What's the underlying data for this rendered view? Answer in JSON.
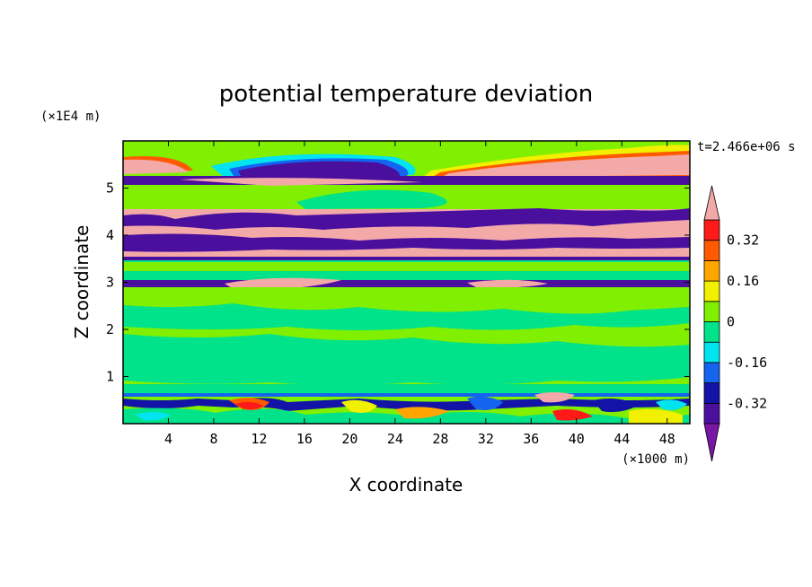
{
  "chart_data": {
    "type": "heatmap",
    "title": "potential temperature deviation",
    "xlabel": "X coordinate",
    "ylabel": "Z coordinate",
    "x_scale_label": "(×1000 m)",
    "y_scale_label": "(×1E4 m)",
    "time_label": "t=2.466e+06 s",
    "xlim": [
      0,
      50
    ],
    "ylim": [
      0,
      6
    ],
    "x_ticks": [
      4,
      8,
      12,
      16,
      20,
      24,
      28,
      32,
      36,
      40,
      44,
      48
    ],
    "x_tick_labels": [
      "4",
      "8",
      "12",
      "16",
      "20",
      "24",
      "28",
      "32",
      "36",
      "40",
      "44",
      "48"
    ],
    "y_ticks": [
      1,
      2,
      3,
      4,
      5
    ],
    "y_tick_labels": [
      "1",
      "2",
      "3",
      "4",
      "5"
    ],
    "colorbar": {
      "levels": [
        -0.4,
        -0.32,
        -0.24,
        -0.16,
        -0.08,
        0,
        0.08,
        0.16,
        0.24,
        0.32,
        0.4
      ],
      "tick_values": [
        -0.32,
        -0.16,
        0,
        0.16,
        0.32
      ],
      "tick_labels": [
        "-0.32",
        "-0.16",
        "0",
        "0.16",
        "0.32"
      ],
      "under_color": "#7a16a6",
      "over_color": "#f4a9a9",
      "colors": [
        "#4b0f9e",
        "#1313a8",
        "#1464f0",
        "#00e4f0",
        "#00e38a",
        "#80f000",
        "#f0f000",
        "#ffa500",
        "#ff5a00",
        "#ff1a1a"
      ]
    },
    "bands": [
      {
        "z": [
          0.0,
          0.6
        ],
        "value": "mixed (-0.4 .. 0.4)"
      },
      {
        "z": [
          0.6,
          2.9
        ],
        "value": 0.0
      },
      {
        "z": [
          2.9,
          3.05
        ],
        "value": -0.4
      },
      {
        "z": [
          3.05,
          3.5
        ],
        "value": 0.0
      },
      {
        "z": [
          3.5,
          4.6
        ],
        "value": "alternating -0.4 / 0.4"
      },
      {
        "z": [
          4.6,
          5.1
        ],
        "value": 0.08
      },
      {
        "z": [
          5.1,
          5.8
        ],
        "value": "alternating -0.4 / 0.4"
      },
      {
        "z": [
          5.8,
          6.0
        ],
        "value": 0.08
      }
    ]
  }
}
